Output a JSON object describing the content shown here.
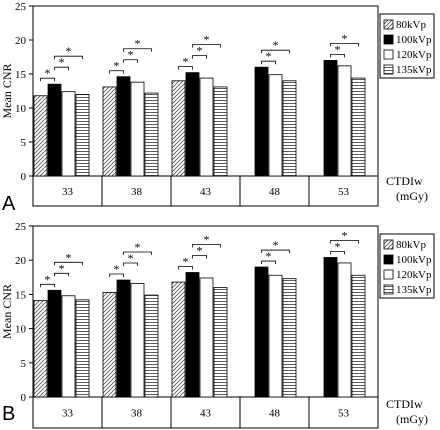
{
  "chart_data": [
    {
      "type": "bar",
      "panel_label": "A",
      "categories": [
        "33",
        "38",
        "43",
        "48",
        "53"
      ],
      "series": [
        {
          "name": "80kVp",
          "pattern": "diagonal-hatch",
          "values": [
            11.8,
            13.1,
            14.0,
            null,
            null
          ]
        },
        {
          "name": "100kVp",
          "pattern": "solid-black",
          "values": [
            13.5,
            14.6,
            15.2,
            16.0,
            17.0
          ]
        },
        {
          "name": "120kVp",
          "pattern": "white",
          "values": [
            12.4,
            13.8,
            14.4,
            14.9,
            16.2
          ]
        },
        {
          "name": "135kVp",
          "pattern": "horizontal-lines",
          "values": [
            12.0,
            12.2,
            13.1,
            14.0,
            14.4
          ]
        }
      ],
      "ylabel": "Mean CNR",
      "xlabel_line1": "CTDIw",
      "xlabel_line2": "(mGy)",
      "ylim": [
        0,
        25
      ],
      "yticks": [
        "0",
        "5",
        "10",
        "15",
        "20",
        "25"
      ],
      "significance_marker": "*",
      "legend": "top-right"
    },
    {
      "type": "bar",
      "panel_label": "B",
      "categories": [
        "33",
        "38",
        "43",
        "48",
        "53"
      ],
      "series": [
        {
          "name": "80kVp",
          "pattern": "diagonal-hatch",
          "values": [
            14.1,
            15.3,
            16.8,
            null,
            null
          ]
        },
        {
          "name": "100kVp",
          "pattern": "solid-black",
          "values": [
            15.6,
            17.1,
            18.2,
            19.0,
            20.4
          ]
        },
        {
          "name": "120kVp",
          "pattern": "white",
          "values": [
            14.8,
            16.6,
            17.4,
            17.8,
            19.6
          ]
        },
        {
          "name": "135kVp",
          "pattern": "horizontal-lines",
          "values": [
            14.2,
            14.9,
            16.0,
            17.3,
            17.8
          ]
        }
      ],
      "ylabel": "Mean CNR",
      "xlabel_line1": "CTDIw",
      "xlabel_line2": "(mGy)",
      "ylim": [
        0,
        25
      ],
      "yticks": [
        "0",
        "5",
        "10",
        "15",
        "20",
        "25"
      ],
      "significance_marker": "*",
      "legend": "top-right"
    }
  ]
}
